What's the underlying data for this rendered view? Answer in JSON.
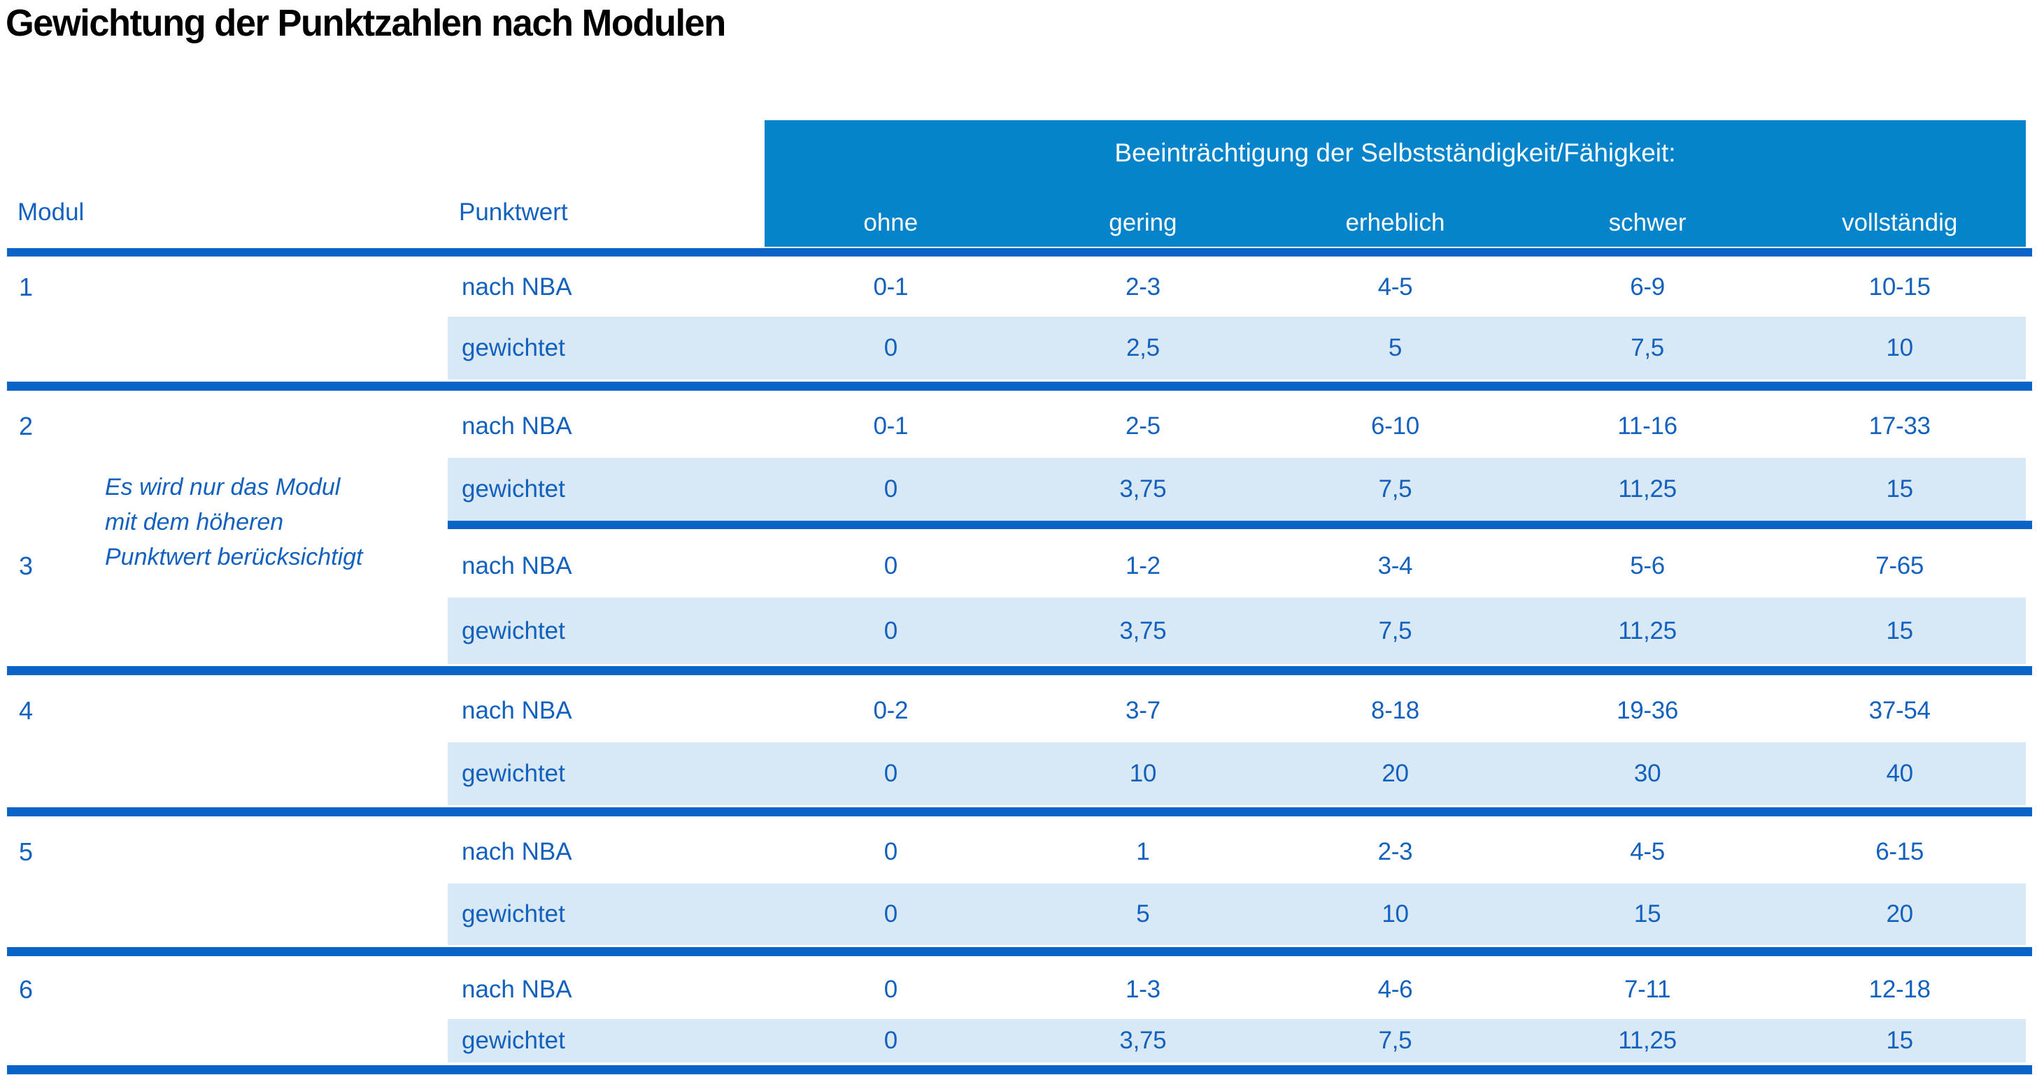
{
  "title": "Gewichtung der Punktzahlen nach Modulen",
  "header": {
    "group_label": "Beeinträchtigung der Selbstständigkeit/Fähigkeit:",
    "col_modul": "Modul",
    "col_punktwert": "Punktwert",
    "severity_levels": [
      "ohne",
      "gering",
      "erheblich",
      "schwer",
      "vollständig"
    ]
  },
  "note": {
    "lines": [
      "Es wird nur das Modul",
      "mit dem höheren",
      "Punktwert berücksichtigt"
    ]
  },
  "colors": {
    "header_blue": "#0584CC",
    "line_blue": "#0A63C6",
    "row_light_blue": "#D9E8F5",
    "text_blue": "#1261BE",
    "title_black": "#000000"
  },
  "modules": [
    {
      "number": "1",
      "rows": [
        {
          "label": "nach NBA",
          "values": [
            "0-1",
            "2-3",
            "4-5",
            "6-9",
            "10-15"
          ]
        },
        {
          "label": "gewichtet",
          "values": [
            "0",
            "2,5",
            "5",
            "7,5",
            "10"
          ]
        }
      ]
    },
    {
      "number": "2",
      "rows": [
        {
          "label": "nach NBA",
          "values": [
            "0-1",
            "2-5",
            "6-10",
            "11-16",
            "17-33"
          ]
        },
        {
          "label": "gewichtet",
          "values": [
            "0",
            "3,75",
            "7,5",
            "11,25",
            "15"
          ]
        }
      ]
    },
    {
      "number": "3",
      "rows": [
        {
          "label": "nach NBA",
          "values": [
            "0",
            "1-2",
            "3-4",
            "5-6",
            "7-65"
          ]
        },
        {
          "label": "gewichtet",
          "values": [
            "0",
            "3,75",
            "7,5",
            "11,25",
            "15"
          ]
        }
      ]
    },
    {
      "number": "4",
      "rows": [
        {
          "label": "nach NBA",
          "values": [
            "0-2",
            "3-7",
            "8-18",
            "19-36",
            "37-54"
          ]
        },
        {
          "label": "gewichtet",
          "values": [
            "0",
            "10",
            "20",
            "30",
            "40"
          ]
        }
      ]
    },
    {
      "number": "5",
      "rows": [
        {
          "label": "nach NBA",
          "values": [
            "0",
            "1",
            "2-3",
            "4-5",
            "6-15"
          ]
        },
        {
          "label": "gewichtet",
          "values": [
            "0",
            "5",
            "10",
            "15",
            "20"
          ]
        }
      ]
    },
    {
      "number": "6",
      "rows": [
        {
          "label": "nach NBA",
          "values": [
            "0",
            "1-3",
            "4-6",
            "7-11",
            "12-18"
          ]
        },
        {
          "label": "gewichtet",
          "values": [
            "0",
            "3,75",
            "7,5",
            "11,25",
            "15"
          ]
        }
      ]
    }
  ]
}
